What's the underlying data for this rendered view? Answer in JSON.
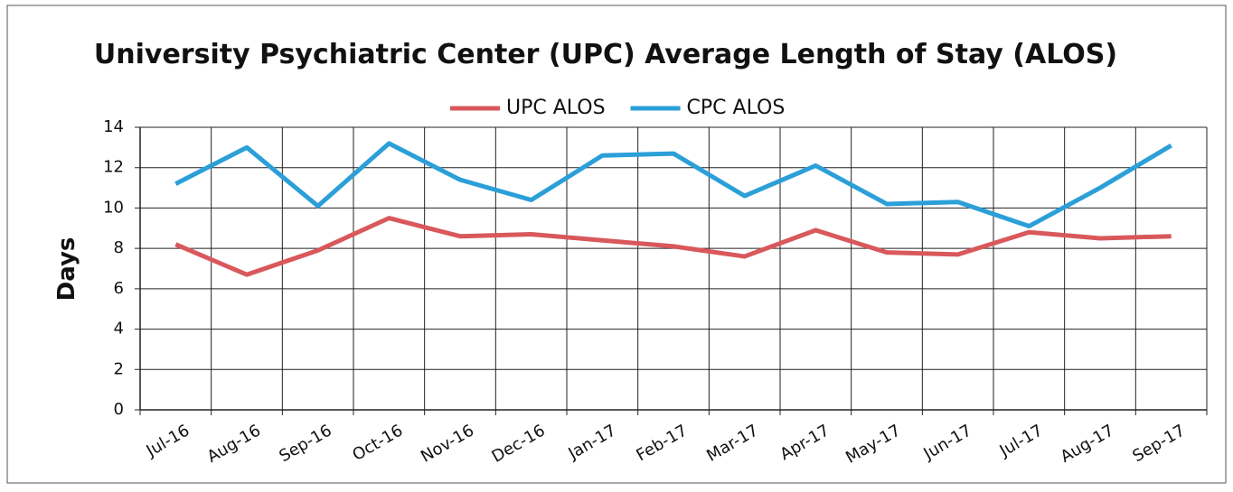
{
  "chart_data": {
    "type": "line",
    "title": "University  Psychiatric Center (UPC) Average Length of Stay (ALOS)",
    "y_label": "Days",
    "categories": [
      "Jul-16",
      "Aug-16",
      "Sep-16",
      "Oct-16",
      "Nov-16",
      "Dec-16",
      "Jan-17",
      "Feb-17",
      "Mar-17",
      "Apr-17",
      "May-17",
      "Jun-17",
      "Jul-17",
      "Aug-17",
      "Sep-17"
    ],
    "series": [
      {
        "name": "UPC ALOS",
        "color": "#d9585b",
        "values": [
          8.2,
          6.7,
          7.9,
          9.5,
          8.6,
          8.7,
          8.4,
          8.1,
          7.6,
          8.9,
          7.8,
          7.7,
          8.8,
          8.5,
          8.6
        ]
      },
      {
        "name": "CPC ALOS",
        "color": "#2b9fd8",
        "values": [
          11.2,
          13.0,
          10.1,
          13.2,
          11.4,
          10.4,
          12.6,
          12.7,
          10.6,
          12.1,
          10.2,
          10.3,
          9.1,
          11.0,
          13.1
        ]
      }
    ],
    "ylim": [
      0,
      14
    ],
    "yticks": [
      0,
      2,
      4,
      6,
      8,
      10,
      12,
      14
    ],
    "grid": true,
    "legend": "top"
  }
}
